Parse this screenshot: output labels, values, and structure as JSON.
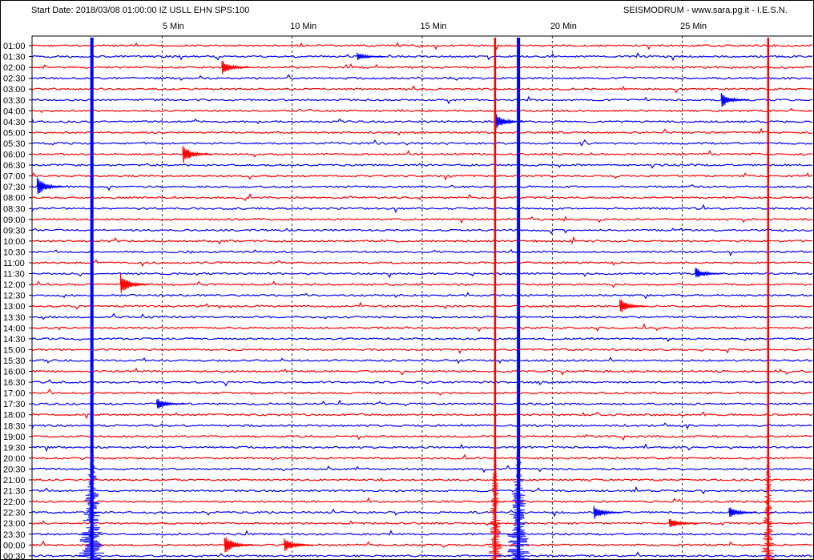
{
  "header": {
    "start_date": "Start Date: 2018/03/08 01:00:00 IZ USLL EHN SPS:100",
    "source": "SEISMODRUM - www.sara.pg.it - I.E.S.N."
  },
  "colors": {
    "red": "#ff0000",
    "blue": "#0000ff",
    "grid": "#000000"
  },
  "chart_data": {
    "type": "line",
    "title": "",
    "xlabel": "",
    "ylabel": "",
    "x_ticks": [
      {
        "label": "5 Min",
        "minute": 5
      },
      {
        "label": "10 Min",
        "minute": 10
      },
      {
        "label": "15 Min",
        "minute": 15
      },
      {
        "label": "20 Min",
        "minute": 20
      },
      {
        "label": "25 Min",
        "minute": 25
      }
    ],
    "xlim": [
      0,
      30
    ],
    "rows": [
      "01:00",
      "01:30",
      "02:00",
      "02:30",
      "03:00",
      "03:30",
      "04:00",
      "04:30",
      "05:00",
      "05:30",
      "06:00",
      "06:30",
      "07:00",
      "07:30",
      "08:00",
      "08:30",
      "09:00",
      "09:30",
      "10:00",
      "10:30",
      "11:00",
      "11:30",
      "12:00",
      "12:30",
      "13:00",
      "13:30",
      "14:00",
      "14:30",
      "15:00",
      "15:30",
      "16:00",
      "16:30",
      "17:00",
      "17:30",
      "18:00",
      "18:30",
      "19:00",
      "19:30",
      "20:00",
      "20:30",
      "21:00",
      "21:30",
      "22:00",
      "22:30",
      "23:00",
      "23:30",
      "00:00",
      "00:30"
    ],
    "row_colors": [
      "red",
      "blue"
    ],
    "events": [
      {
        "minute": 2.3,
        "rows": [
          0,
          47
        ],
        "kind": "column",
        "color": "blue"
      },
      {
        "minute": 18.7,
        "rows": [
          0,
          47
        ],
        "kind": "column",
        "color": "blue"
      },
      {
        "minute": 17.8,
        "rows": [
          0,
          47
        ],
        "kind": "column",
        "color": "red"
      },
      {
        "minute": 28.3,
        "rows": [
          0,
          47
        ],
        "kind": "column",
        "color": "red"
      },
      {
        "minute": 7.3,
        "row": 2,
        "amp": 10
      },
      {
        "minute": 12.5,
        "row": 1,
        "amp": 5
      },
      {
        "minute": 5.8,
        "row": 10,
        "amp": 12
      },
      {
        "minute": 0.2,
        "row": 13,
        "amp": 12
      },
      {
        "minute": 3.4,
        "row": 22,
        "amp": 14
      },
      {
        "minute": 17.8,
        "row": 7,
        "amp": 12
      },
      {
        "minute": 22.6,
        "row": 24,
        "amp": 10
      },
      {
        "minute": 26.5,
        "row": 5,
        "amp": 10
      },
      {
        "minute": 25.5,
        "row": 21,
        "amp": 8
      },
      {
        "minute": 4.8,
        "row": 33,
        "amp": 8
      },
      {
        "minute": 9.7,
        "row": 46,
        "amp": 10
      },
      {
        "minute": 7.4,
        "row": 46,
        "amp": 14
      },
      {
        "minute": 21.6,
        "row": 43,
        "amp": 10
      },
      {
        "minute": 26.8,
        "row": 43,
        "amp": 8
      },
      {
        "minute": 24.5,
        "row": 44,
        "amp": 8
      }
    ]
  }
}
